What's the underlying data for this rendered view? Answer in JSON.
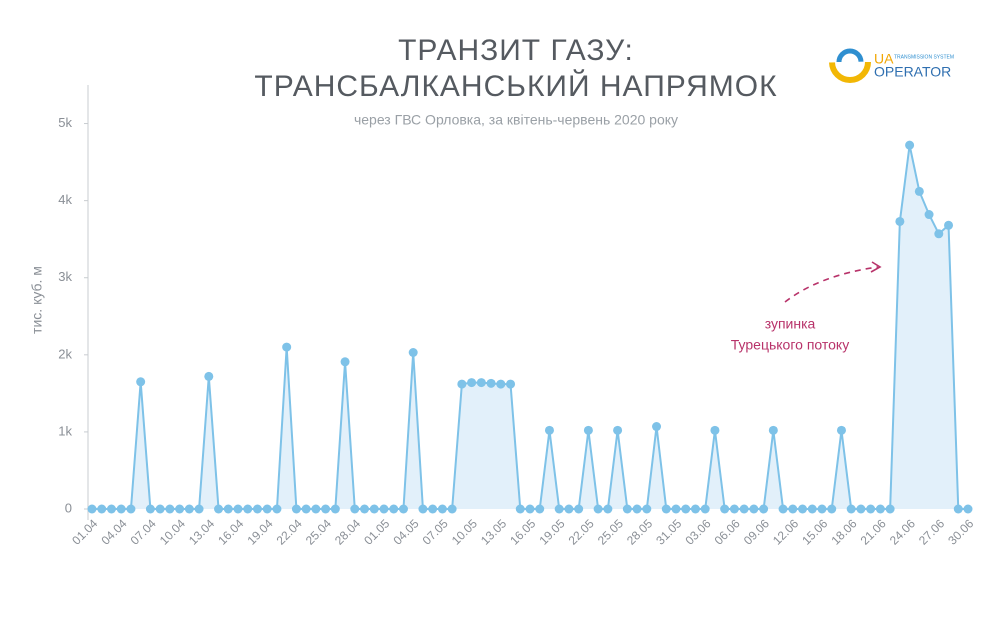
{
  "chart_data": {
    "type": "area",
    "title": [
      "ТРАНЗИТ ГАЗУ:",
      "ТРАНСБАЛКАНСЬКИЙ НАПРЯМОК"
    ],
    "subtitle": "через ГВС Орловка, за квітень-червень 2020 року",
    "y_label": "тис. куб. м",
    "annotation": [
      "зупинка",
      "Турецького потоку"
    ],
    "logo": {
      "mark": "UA",
      "name": "OPERATOR",
      "tagline": "TRANSMISSION SYSTEM"
    },
    "categories": [
      "01.04",
      null,
      null,
      "04.04",
      null,
      null,
      "07.04",
      null,
      null,
      "10.04",
      null,
      null,
      "13.04",
      null,
      null,
      "16.04",
      null,
      null,
      "19.04",
      null,
      null,
      "22.04",
      null,
      null,
      "25.04",
      null,
      null,
      "28.04",
      null,
      null,
      "01.05",
      null,
      null,
      "04.05",
      null,
      null,
      "07.05",
      null,
      null,
      "10.05",
      null,
      null,
      "13.05",
      null,
      null,
      "16.05",
      null,
      null,
      "19.05",
      null,
      null,
      "22.05",
      null,
      null,
      "25.05",
      null,
      null,
      "28.05",
      null,
      null,
      "31.05",
      null,
      null,
      "03.06",
      null,
      null,
      "06.06",
      null,
      null,
      "09.06",
      null,
      null,
      "12.06",
      null,
      null,
      "15.06",
      null,
      null,
      "18.06",
      null,
      null,
      "21.06",
      null,
      null,
      "24.06",
      null,
      null,
      "27.06",
      null,
      null,
      "30.06"
    ],
    "values": [
      0,
      0,
      0,
      0,
      0,
      1650,
      0,
      0,
      0,
      0,
      0,
      0,
      1720,
      0,
      0,
      0,
      0,
      0,
      0,
      0,
      2100,
      0,
      0,
      0,
      0,
      0,
      1910,
      0,
      0,
      0,
      0,
      0,
      0,
      2030,
      0,
      0,
      0,
      0,
      1620,
      1640,
      1640,
      1630,
      1620,
      1620,
      0,
      0,
      0,
      1020,
      0,
      0,
      0,
      1020,
      0,
      0,
      1020,
      0,
      0,
      0,
      1070,
      0,
      0,
      0,
      0,
      0,
      1020,
      0,
      0,
      0,
      0,
      0,
      1020,
      0,
      0,
      0,
      0,
      0,
      0,
      1020,
      0,
      0,
      0,
      0,
      0,
      3730,
      4720,
      4120,
      3820,
      3570,
      3680,
      0,
      0
    ],
    "color": "#7ec2e8",
    "fill_color": "#e2f0fa",
    "ylim": [
      0,
      5500
    ],
    "yticks": [
      0,
      {
        "value": 1000,
        "label": "1k"
      },
      {
        "value": 2000,
        "label": "2k"
      },
      {
        "value": 3000,
        "label": "3k"
      },
      {
        "value": 4000,
        "label": "4k"
      },
      {
        "value": 5000,
        "label": "5k"
      }
    ],
    "grid": false
  }
}
